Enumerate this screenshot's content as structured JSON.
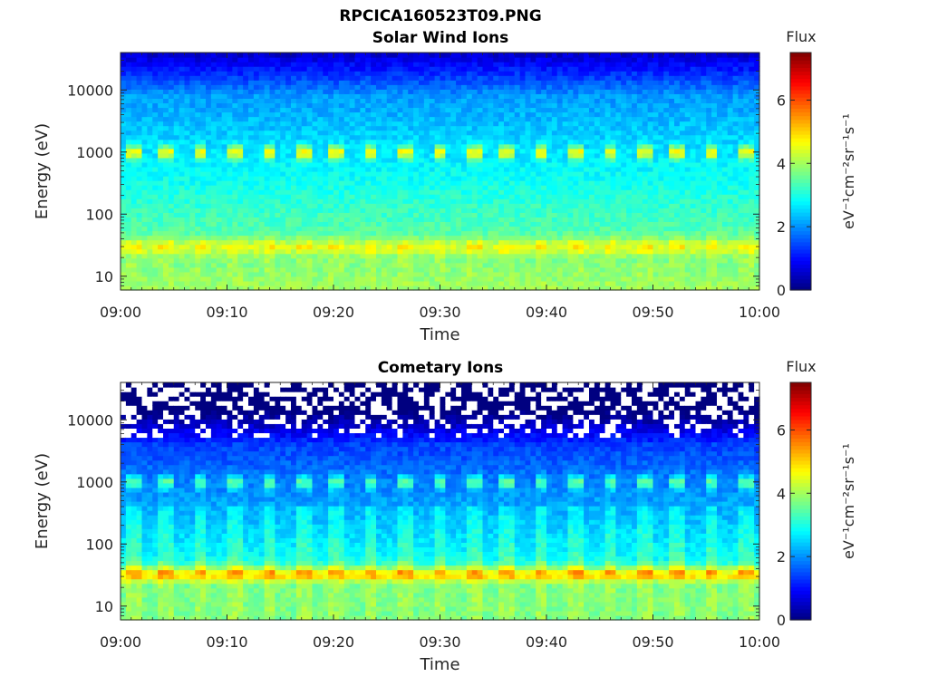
{
  "figure": {
    "title": "RPCICA160523T09.PNG"
  },
  "chart_data": [
    {
      "type": "heatmap",
      "title": "Solar Wind Ions",
      "xlabel": "Time",
      "ylabel": "Energy (eV)",
      "x_ticks": [
        "09:00",
        "09:10",
        "09:20",
        "09:30",
        "09:40",
        "09:50",
        "10:00"
      ],
      "x_range": [
        "09:00",
        "10:00"
      ],
      "y_scale": "log",
      "y_ticks": [
        10,
        100,
        1000,
        10000
      ],
      "y_tick_labels": [
        "10",
        "100",
        "1000",
        "10000"
      ],
      "y_range": [
        6,
        40000
      ],
      "colorbar": {
        "label": "Flux",
        "unit": "eV⁻¹cm⁻²sr⁻¹s⁻¹",
        "range": [
          0,
          7.5
        ],
        "ticks": [
          0,
          2,
          4,
          6
        ],
        "colormap": "jet"
      },
      "bands": [
        {
          "energy_ev": 30,
          "peak_flux": 5.0
        },
        {
          "energy_ev": 1000,
          "peak_flux": 4.6
        }
      ],
      "pulse_period_min": 3.2
    },
    {
      "type": "heatmap",
      "title": "Cometary Ions",
      "xlabel": "Time",
      "ylabel": "Energy (eV)",
      "x_ticks": [
        "09:00",
        "09:10",
        "09:20",
        "09:30",
        "09:40",
        "09:50",
        "10:00"
      ],
      "x_range": [
        "09:00",
        "10:00"
      ],
      "y_scale": "log",
      "y_ticks": [
        10,
        100,
        1000,
        10000
      ],
      "y_tick_labels": [
        "10",
        "100",
        "1000",
        "10000"
      ],
      "y_range": [
        6,
        40000
      ],
      "colorbar": {
        "label": "Flux",
        "unit": "eV⁻¹cm⁻²sr⁻¹s⁻¹",
        "range": [
          0,
          7.5
        ],
        "ticks": [
          0,
          2,
          4,
          6
        ],
        "colormap": "jet"
      },
      "bands": [
        {
          "energy_ev": 32,
          "peak_flux": 6.0
        },
        {
          "energy_ev": 1000,
          "peak_flux": 2.6
        }
      ],
      "pulse_period_min": 3.2
    }
  ]
}
